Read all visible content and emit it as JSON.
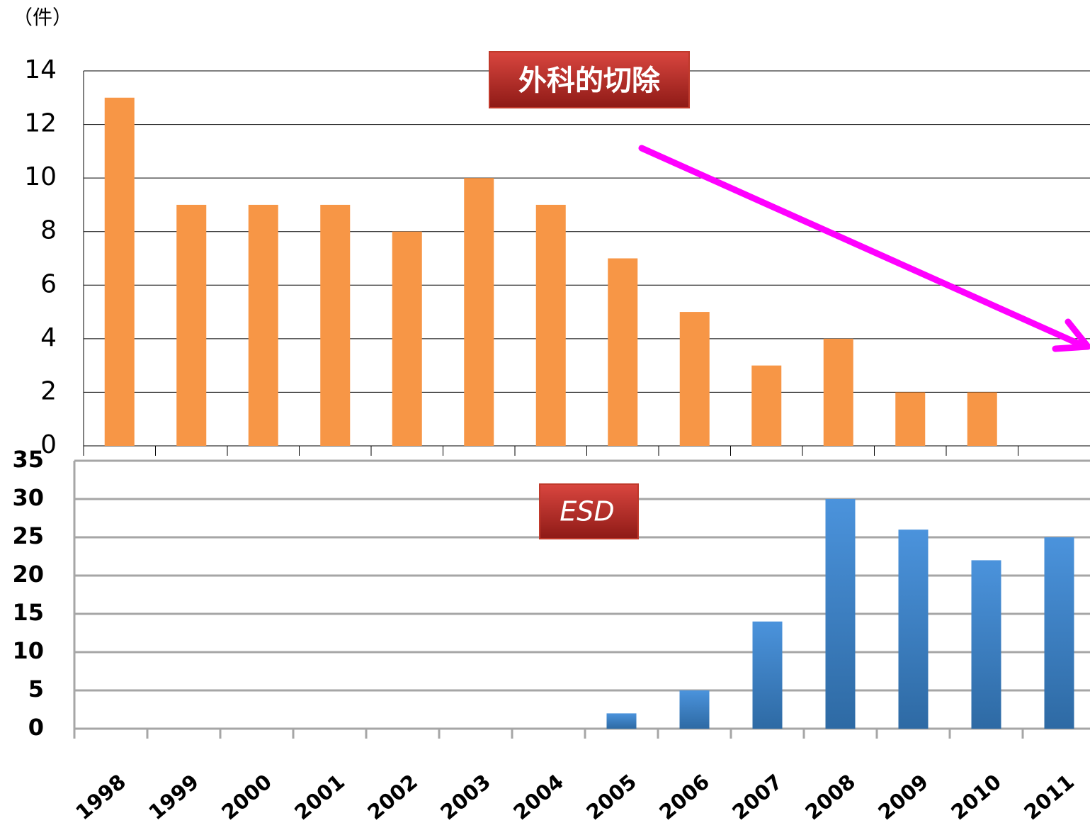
{
  "chart_data": [
    {
      "type": "bar",
      "title": "外科的切除",
      "y_label": "（件）",
      "values": [
        13,
        9,
        9,
        9,
        8,
        10,
        9,
        7,
        5,
        3,
        4,
        2,
        2,
        0
      ],
      "color": "#f79646",
      "ylim": [
        0,
        14
      ],
      "yticks": [
        0,
        2,
        4,
        6,
        8,
        10,
        12,
        14
      ],
      "grid": true
    },
    {
      "type": "bar",
      "title": "ESD",
      "categories": [
        "1998",
        "1999",
        "2000",
        "2001",
        "2002",
        "2003",
        "2004",
        "2005",
        "2006",
        "2007",
        "2008",
        "2009",
        "2010",
        "2011"
      ],
      "values": [
        0,
        0,
        0,
        0,
        0,
        0,
        0,
        2,
        5,
        14,
        30,
        26,
        22,
        25
      ],
      "color": "#3f80c8",
      "ylim": [
        0,
        35
      ],
      "yticks": [
        0,
        5,
        10,
        15,
        20,
        25,
        30,
        35
      ],
      "grid": true
    }
  ]
}
